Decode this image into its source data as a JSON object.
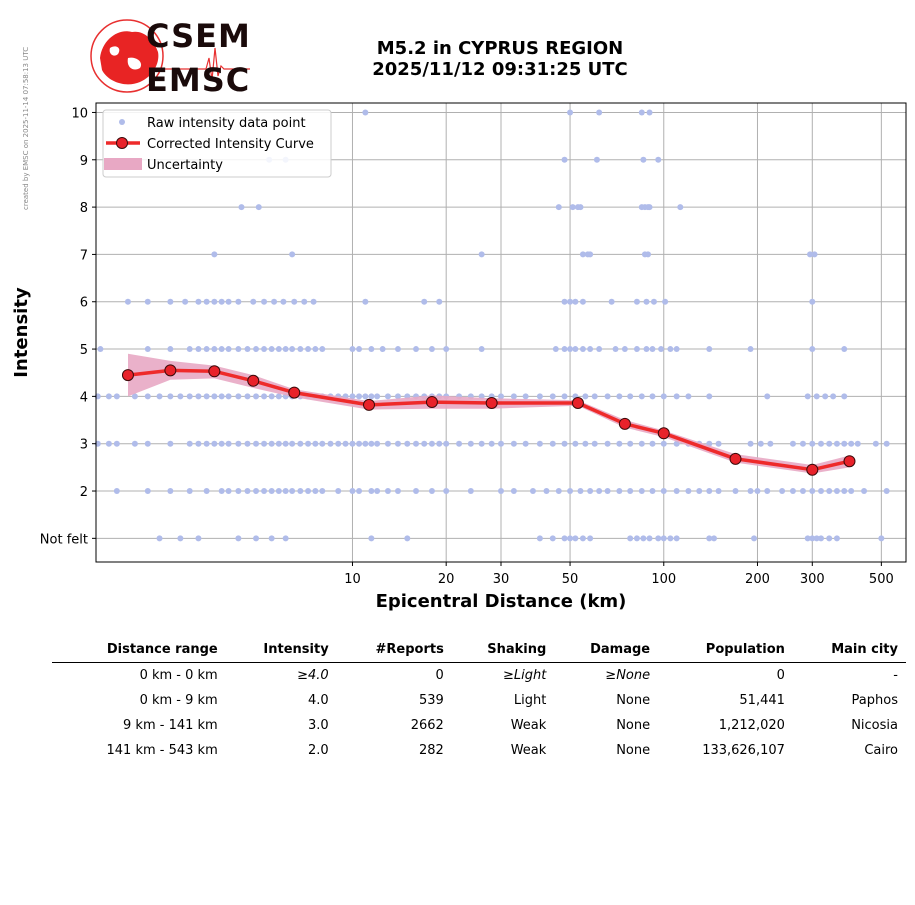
{
  "watermark": "created by EMSC on 2025-11-14 07:58:13 UTC",
  "logo": {
    "line1": "CSEM",
    "line2": "EMSC"
  },
  "title": {
    "line1": "M5.2 in CYPRUS REGION",
    "line2": "2025/11/12 09:31:25 UTC"
  },
  "colors": {
    "raw": "#b0bcea",
    "curve": "#ee2a2a",
    "marker": "#e8222a",
    "band": "#e8a8c4",
    "grid": "#b0b0b0"
  },
  "chart_data": {
    "type": "scatter",
    "xlabel": "Epicentral Distance (km)",
    "ylabel": "Intensity",
    "x_scale": "log",
    "xlim": [
      1.5,
      600
    ],
    "ylim": [
      0.5,
      10.2
    ],
    "x_ticks": [
      {
        "value": 10,
        "label": "10"
      },
      {
        "value": 20,
        "label": "20"
      },
      {
        "value": 30,
        "label": "30"
      },
      {
        "value": 50,
        "label": "50"
      },
      {
        "value": 100,
        "label": "100"
      },
      {
        "value": 200,
        "label": "200"
      },
      {
        "value": 300,
        "label": "300"
      },
      {
        "value": 500,
        "label": "500"
      }
    ],
    "y_ticks": [
      {
        "value": 1,
        "label": "Not felt"
      },
      {
        "value": 2,
        "label": "2"
      },
      {
        "value": 3,
        "label": "3"
      },
      {
        "value": 4,
        "label": "4"
      },
      {
        "value": 5,
        "label": "5"
      },
      {
        "value": 6,
        "label": "6"
      },
      {
        "value": 7,
        "label": "7"
      },
      {
        "value": 8,
        "label": "8"
      },
      {
        "value": 9,
        "label": "9"
      },
      {
        "value": 10,
        "label": "10"
      }
    ],
    "grid": true,
    "legend_position": "top-left",
    "legend": [
      {
        "label": "Raw intensity data point",
        "kind": "dot"
      },
      {
        "label": "Corrected Intensity Curve",
        "kind": "line"
      },
      {
        "label": "Uncertainty",
        "kind": "band"
      }
    ],
    "raw_points": [
      {
        "y": 10,
        "x": [
          11,
          50,
          62,
          85,
          90
        ]
      },
      {
        "y": 9,
        "x": [
          5.4,
          6.1,
          48,
          61,
          86,
          96
        ]
      },
      {
        "y": 8,
        "x": [
          4.4,
          5.0,
          46,
          51,
          53,
          54,
          85,
          87,
          89,
          90,
          113
        ]
      },
      {
        "y": 7,
        "x": [
          3.6,
          6.4,
          26,
          55,
          57,
          58,
          87,
          89,
          295,
          305
        ]
      },
      {
        "y": 6,
        "x": [
          1.9,
          2.2,
          2.6,
          2.9,
          3.2,
          3.4,
          3.6,
          3.8,
          4.0,
          4.3,
          4.8,
          5.2,
          5.6,
          6.0,
          6.5,
          7.0,
          7.5,
          11,
          17,
          19,
          48,
          50,
          52,
          55,
          68,
          82,
          88,
          93,
          101,
          300
        ]
      },
      {
        "y": 5,
        "x": [
          1.55,
          2.2,
          2.6,
          3.0,
          3.2,
          3.4,
          3.6,
          3.8,
          4.0,
          4.3,
          4.6,
          4.9,
          5.2,
          5.5,
          5.8,
          6.1,
          6.4,
          6.8,
          7.2,
          7.6,
          8.0,
          10,
          10.5,
          11.5,
          12.5,
          14,
          16,
          18,
          20,
          26,
          45,
          48,
          50,
          52,
          55,
          58,
          62,
          70,
          75,
          82,
          88,
          92,
          98,
          105,
          110,
          140,
          190,
          300,
          380
        ]
      },
      {
        "y": 4,
        "x": [
          1.52,
          1.65,
          1.75,
          2.0,
          2.2,
          2.4,
          2.6,
          2.8,
          3.0,
          3.2,
          3.4,
          3.6,
          3.8,
          4.0,
          4.3,
          4.6,
          4.9,
          5.2,
          5.5,
          5.8,
          6.1,
          6.4,
          6.8,
          7.2,
          7.6,
          8.0,
          8.5,
          9.0,
          9.5,
          10,
          10.5,
          11,
          11.5,
          12,
          13,
          14,
          15,
          16,
          17,
          18,
          19,
          20,
          22,
          24,
          26,
          28,
          30,
          33,
          36,
          40,
          44,
          48,
          52,
          56,
          60,
          66,
          72,
          78,
          85,
          92,
          100,
          110,
          120,
          140,
          215,
          290,
          310,
          330,
          350,
          380
        ]
      },
      {
        "y": 3,
        "x": [
          1.52,
          1.65,
          1.75,
          2.0,
          2.2,
          2.6,
          3.0,
          3.2,
          3.4,
          3.6,
          3.8,
          4.0,
          4.3,
          4.6,
          4.9,
          5.2,
          5.5,
          5.8,
          6.1,
          6.4,
          6.8,
          7.2,
          7.6,
          8.0,
          8.5,
          9.0,
          9.5,
          10,
          10.5,
          11,
          11.5,
          12,
          13,
          14,
          15,
          16,
          17,
          18,
          19,
          20,
          22,
          24,
          26,
          28,
          30,
          33,
          36,
          40,
          44,
          48,
          52,
          56,
          60,
          66,
          72,
          78,
          85,
          92,
          100,
          110,
          120,
          130,
          140,
          150,
          190,
          205,
          220,
          260,
          280,
          300,
          320,
          340,
          360,
          380,
          400,
          420,
          480,
          520
        ]
      },
      {
        "y": 2,
        "x": [
          1.75,
          2.2,
          2.6,
          3.0,
          3.4,
          3.8,
          4.0,
          4.3,
          4.6,
          4.9,
          5.2,
          5.5,
          5.8,
          6.1,
          6.4,
          6.8,
          7.2,
          7.6,
          8.0,
          9.0,
          10,
          10.5,
          11.5,
          12,
          13,
          14,
          16,
          18,
          20,
          24,
          30,
          33,
          38,
          42,
          46,
          50,
          54,
          58,
          62,
          66,
          72,
          78,
          85,
          92,
          100,
          110,
          120,
          130,
          140,
          150,
          170,
          190,
          200,
          215,
          240,
          260,
          280,
          300,
          320,
          340,
          360,
          380,
          400,
          440,
          520
        ]
      },
      {
        "y": 1,
        "x": [
          2.4,
          2.8,
          3.2,
          4.3,
          4.9,
          5.5,
          6.1,
          11.5,
          15,
          40,
          44,
          48,
          50,
          52,
          55,
          58,
          78,
          82,
          86,
          90,
          96,
          100,
          105,
          110,
          140,
          145,
          195,
          290,
          300,
          310,
          320,
          340,
          360,
          500
        ]
      }
    ],
    "curve": {
      "x": [
        1.9,
        2.6,
        3.6,
        4.8,
        6.5,
        11.3,
        18,
        28,
        53,
        75,
        100,
        170,
        300,
        395
      ],
      "y": [
        4.45,
        4.55,
        4.53,
        4.33,
        4.08,
        3.82,
        3.88,
        3.86,
        3.86,
        3.42,
        3.22,
        2.68,
        2.45,
        2.63
      ],
      "upper": [
        4.9,
        4.75,
        4.65,
        4.45,
        4.15,
        3.9,
        4.02,
        3.96,
        3.92,
        3.5,
        3.28,
        2.78,
        2.55,
        2.75
      ],
      "lower": [
        4.0,
        4.35,
        4.38,
        4.18,
        3.98,
        3.72,
        3.74,
        3.74,
        3.8,
        3.34,
        3.14,
        2.6,
        2.37,
        2.5
      ]
    }
  },
  "table": {
    "headers": [
      "Distance range",
      "Intensity",
      "#Reports",
      "Shaking",
      "Damage",
      "Population",
      "Main city"
    ],
    "rows": [
      [
        "0 km -    0 km",
        "≥4.0",
        "0",
        "≥Light",
        "≥None",
        "0",
        "-"
      ],
      [
        "0 km -    9 km",
        "4.0",
        "539",
        "Light",
        "None",
        "51,441",
        "Paphos"
      ],
      [
        "9 km -  141 km",
        "3.0",
        "2662",
        "Weak",
        "None",
        "1,212,020",
        "Nicosia"
      ],
      [
        "141 km -  543 km",
        "2.0",
        "282",
        "Weak",
        "None",
        "133,626,107",
        "Cairo"
      ]
    ]
  }
}
